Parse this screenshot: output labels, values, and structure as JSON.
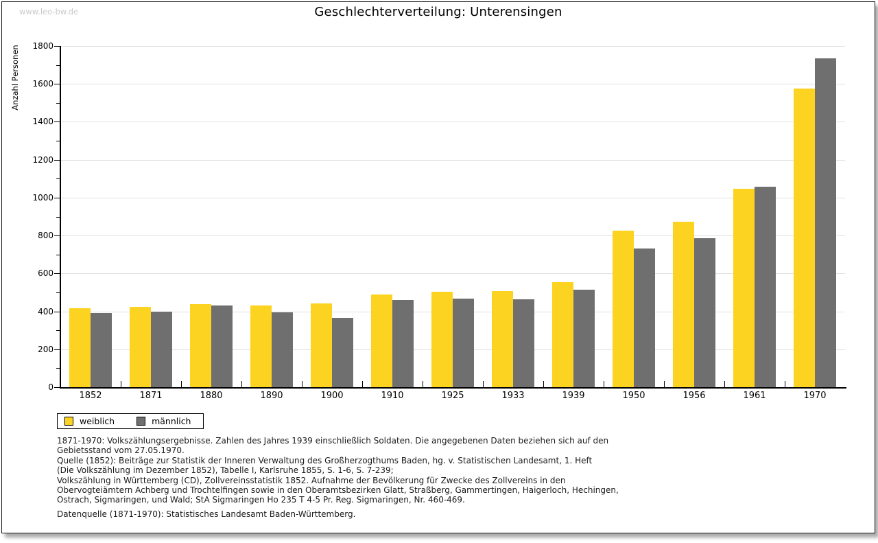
{
  "watermark": "www.leo-bw.de",
  "title": "Geschlechterverteilung: Unterensingen",
  "chart_data": {
    "type": "bar",
    "title": "Geschlechterverteilung: Unterensingen",
    "ylabel": "Anzahl Personen",
    "xlabel": "",
    "ylim": [
      0,
      1800
    ],
    "ytick_major_interval": 200,
    "ytick_minor_interval": 100,
    "grid": true,
    "legend_position": "bottom-left",
    "categories": [
      "1852",
      "1871",
      "1880",
      "1890",
      "1900",
      "1910",
      "1925",
      "1933",
      "1939",
      "1950",
      "1956",
      "1961",
      "1970"
    ],
    "series": [
      {
        "name": "weiblich",
        "color": "#FDD321",
        "values": [
          415,
          425,
          440,
          430,
          443,
          490,
          505,
          508,
          553,
          827,
          872,
          1046,
          1575
        ]
      },
      {
        "name": "männlich",
        "color": "#6F6F6F",
        "values": [
          390,
          400,
          430,
          393,
          365,
          460,
          466,
          465,
          515,
          730,
          785,
          1057,
          1736
        ]
      }
    ]
  },
  "footnotes": [
    "1871-1970: Volkszählungsergebnisse. Zahlen des Jahres 1939 einschließlich Soldaten. Die angegebenen Daten beziehen sich auf den",
    "Gebietsstand vom 27.05.1970.",
    "Quelle (1852): Beiträge zur Statistik der Inneren Verwaltung des Großherzogthums Baden, hg. v. Statistischen Landesamt, 1. Heft",
    "(Die Volkszählung im Dezember 1852), Tabelle I, Karlsruhe 1855, S. 1-6, S. 7-239;",
    "Volkszählung in Württemberg (CD), Zollvereinsstatistik 1852. Aufnahme der Bevölkerung für Zwecke des Zollvereins in den",
    "Obervogteiämtern Achberg und Trochtelfingen sowie in den Oberamtsbezirken Glatt, Straßberg, Gammertingen, Haigerloch, Hechingen,",
    "Ostrach, Sigmaringen, und Wald; StA Sigmaringen Ho 235 T 4-5 Pr. Reg. Sigmaringen, Nr. 460-469."
  ],
  "datasource": "Datenquelle (1871-1970): Statistisches Landesamt Baden-Württemberg."
}
